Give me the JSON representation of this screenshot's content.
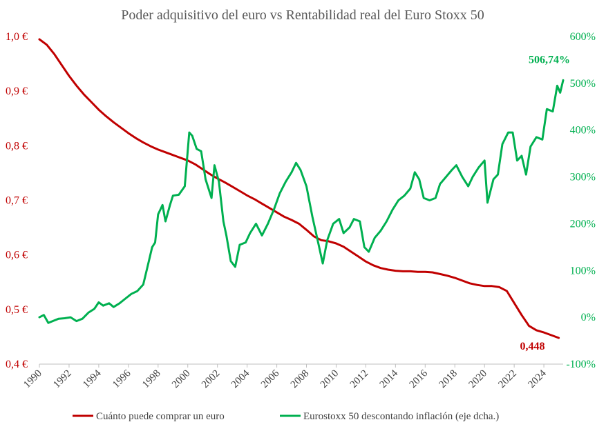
{
  "chart_data": {
    "type": "line",
    "title": "Poder adquisitivo del euro vs Rentabilidad real del Euro Stoxx 50",
    "x_range": [
      1990,
      2025.3
    ],
    "x_ticks": [
      "1990",
      "1992",
      "1994",
      "1996",
      "1998",
      "2000",
      "2002",
      "2004",
      "2006",
      "2008",
      "2010",
      "2012",
      "2014",
      "2016",
      "2018",
      "2020",
      "2022",
      "2024"
    ],
    "y_left": {
      "range": [
        0.4,
        1.0
      ],
      "ticks": [
        1.0,
        0.9,
        0.8,
        0.7,
        0.6,
        0.5,
        0.4
      ],
      "tick_labels": [
        "1,0 €",
        "0,9 €",
        "0,8 €",
        "0,7 €",
        "0,6 €",
        "0,5 €",
        "0,4 €"
      ]
    },
    "y_right": {
      "range": [
        -100,
        600
      ],
      "ticks": [
        600,
        500,
        400,
        300,
        200,
        100,
        0,
        -100
      ],
      "tick_labels": [
        "600%",
        "500%",
        "400%",
        "300%",
        "200%",
        "100%",
        "0%",
        "-100%"
      ]
    },
    "series": [
      {
        "name": "Cuánto puede comprar un euro",
        "color": "#c00000",
        "axis": "left",
        "points": [
          [
            1990,
            0.995
          ],
          [
            1990.5,
            0.985
          ],
          [
            1991,
            0.968
          ],
          [
            1991.5,
            0.948
          ],
          [
            1992,
            0.928
          ],
          [
            1992.5,
            0.91
          ],
          [
            1993,
            0.894
          ],
          [
            1993.5,
            0.88
          ],
          [
            1994,
            0.866
          ],
          [
            1994.5,
            0.854
          ],
          [
            1995,
            0.843
          ],
          [
            1995.5,
            0.833
          ],
          [
            1996,
            0.823
          ],
          [
            1996.5,
            0.814
          ],
          [
            1997,
            0.806
          ],
          [
            1997.5,
            0.799
          ],
          [
            1998,
            0.793
          ],
          [
            1998.5,
            0.788
          ],
          [
            1999,
            0.783
          ],
          [
            1999.5,
            0.778
          ],
          [
            2000,
            0.773
          ],
          [
            2000.5,
            0.766
          ],
          [
            2001,
            0.757
          ],
          [
            2001.5,
            0.748
          ],
          [
            2002,
            0.74
          ],
          [
            2002.5,
            0.733
          ],
          [
            2003,
            0.725
          ],
          [
            2003.5,
            0.717
          ],
          [
            2004,
            0.709
          ],
          [
            2004.5,
            0.702
          ],
          [
            2005,
            0.694
          ],
          [
            2005.5,
            0.686
          ],
          [
            2006,
            0.678
          ],
          [
            2006.5,
            0.67
          ],
          [
            2007,
            0.664
          ],
          [
            2007.5,
            0.657
          ],
          [
            2008,
            0.646
          ],
          [
            2008.5,
            0.634
          ],
          [
            2009,
            0.627
          ],
          [
            2009.5,
            0.625
          ],
          [
            2010,
            0.621
          ],
          [
            2010.5,
            0.615
          ],
          [
            2011,
            0.606
          ],
          [
            2011.5,
            0.597
          ],
          [
            2012,
            0.588
          ],
          [
            2012.5,
            0.581
          ],
          [
            2013,
            0.576
          ],
          [
            2013.5,
            0.573
          ],
          [
            2014,
            0.571
          ],
          [
            2014.5,
            0.57
          ],
          [
            2015,
            0.57
          ],
          [
            2015.5,
            0.569
          ],
          [
            2016,
            0.569
          ],
          [
            2016.5,
            0.568
          ],
          [
            2017,
            0.565
          ],
          [
            2017.5,
            0.562
          ],
          [
            2018,
            0.558
          ],
          [
            2018.5,
            0.553
          ],
          [
            2019,
            0.548
          ],
          [
            2019.5,
            0.545
          ],
          [
            2020,
            0.543
          ],
          [
            2020.5,
            0.543
          ],
          [
            2021,
            0.541
          ],
          [
            2021.5,
            0.534
          ],
          [
            2022,
            0.512
          ],
          [
            2022.5,
            0.49
          ],
          [
            2023,
            0.47
          ],
          [
            2023.5,
            0.462
          ],
          [
            2024,
            0.458
          ],
          [
            2024.5,
            0.453
          ],
          [
            2025,
            0.448
          ]
        ]
      },
      {
        "name": "Eurostoxx 50 descontando inflación (eje dcha.)",
        "color": "#00b050",
        "axis": "right",
        "points": [
          [
            1990,
            0
          ],
          [
            1990.3,
            5
          ],
          [
            1990.6,
            -12
          ],
          [
            1990.9,
            -8
          ],
          [
            1991.3,
            -3
          ],
          [
            1991.7,
            -2
          ],
          [
            1992.1,
            0
          ],
          [
            1992.5,
            -8
          ],
          [
            1992.9,
            -3
          ],
          [
            1993.3,
            10
          ],
          [
            1993.7,
            18
          ],
          [
            1994,
            32
          ],
          [
            1994.3,
            25
          ],
          [
            1994.7,
            30
          ],
          [
            1995,
            22
          ],
          [
            1995.4,
            30
          ],
          [
            1995.8,
            40
          ],
          [
            1996.2,
            50
          ],
          [
            1996.6,
            56
          ],
          [
            1997,
            70
          ],
          [
            1997.3,
            110
          ],
          [
            1997.6,
            150
          ],
          [
            1997.8,
            160
          ],
          [
            1998,
            220
          ],
          [
            1998.3,
            240
          ],
          [
            1998.5,
            205
          ],
          [
            1998.8,
            240
          ],
          [
            1999,
            260
          ],
          [
            1999.4,
            262
          ],
          [
            1999.8,
            280
          ],
          [
            2000.1,
            395
          ],
          [
            2000.3,
            388
          ],
          [
            2000.6,
            360
          ],
          [
            2000.9,
            355
          ],
          [
            2001.2,
            295
          ],
          [
            2001.6,
            255
          ],
          [
            2001.8,
            325
          ],
          [
            2002.1,
            290
          ],
          [
            2002.4,
            205
          ],
          [
            2002.6,
            175
          ],
          [
            2002.9,
            120
          ],
          [
            2003.2,
            108
          ],
          [
            2003.5,
            155
          ],
          [
            2003.9,
            160
          ],
          [
            2004.2,
            180
          ],
          [
            2004.6,
            200
          ],
          [
            2005,
            175
          ],
          [
            2005.4,
            200
          ],
          [
            2005.8,
            230
          ],
          [
            2006.2,
            265
          ],
          [
            2006.6,
            290
          ],
          [
            2007,
            310
          ],
          [
            2007.3,
            330
          ],
          [
            2007.6,
            315
          ],
          [
            2008,
            280
          ],
          [
            2008.4,
            215
          ],
          [
            2008.8,
            158
          ],
          [
            2009.1,
            115
          ],
          [
            2009.4,
            165
          ],
          [
            2009.8,
            200
          ],
          [
            2010.2,
            210
          ],
          [
            2010.5,
            180
          ],
          [
            2010.9,
            192
          ],
          [
            2011.2,
            210
          ],
          [
            2011.6,
            205
          ],
          [
            2011.9,
            150
          ],
          [
            2012.2,
            140
          ],
          [
            2012.6,
            170
          ],
          [
            2013,
            185
          ],
          [
            2013.4,
            205
          ],
          [
            2013.8,
            230
          ],
          [
            2014.2,
            250
          ],
          [
            2014.6,
            260
          ],
          [
            2015,
            275
          ],
          [
            2015.3,
            310
          ],
          [
            2015.6,
            295
          ],
          [
            2015.9,
            255
          ],
          [
            2016.3,
            250
          ],
          [
            2016.7,
            255
          ],
          [
            2017,
            285
          ],
          [
            2017.4,
            300
          ],
          [
            2017.8,
            315
          ],
          [
            2018.1,
            325
          ],
          [
            2018.5,
            300
          ],
          [
            2018.9,
            280
          ],
          [
            2019.2,
            300
          ],
          [
            2019.6,
            320
          ],
          [
            2020,
            335
          ],
          [
            2020.2,
            245
          ],
          [
            2020.6,
            295
          ],
          [
            2020.9,
            305
          ],
          [
            2021.2,
            370
          ],
          [
            2021.6,
            395
          ],
          [
            2021.9,
            395
          ],
          [
            2022.2,
            335
          ],
          [
            2022.5,
            345
          ],
          [
            2022.8,
            305
          ],
          [
            2023.1,
            365
          ],
          [
            2023.5,
            385
          ],
          [
            2023.9,
            380
          ],
          [
            2024.2,
            445
          ],
          [
            2024.6,
            440
          ],
          [
            2024.9,
            495
          ],
          [
            2025.1,
            480
          ],
          [
            2025.3,
            506.74
          ]
        ]
      }
    ],
    "annotations": [
      {
        "label": "0,448",
        "series": "Cuánto puede comprar un euro",
        "x": 2025,
        "y": 0.448
      },
      {
        "label": "506,74%",
        "series": "Eurostoxx 50 descontando inflación (eje dcha.)",
        "x": 2025.3,
        "y": 506.74
      }
    ],
    "legend": "bottom",
    "grid": false
  }
}
